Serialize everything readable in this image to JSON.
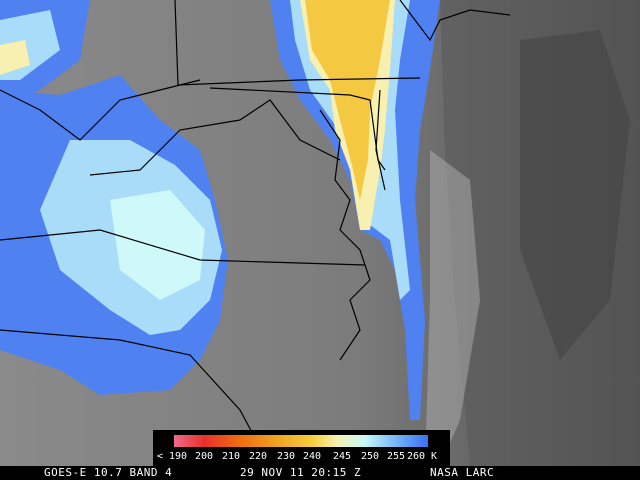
{
  "legend": {
    "labels": [
      "< 190",
      "200",
      "210",
      "220",
      "230",
      "240",
      "245",
      "250",
      "255",
      "260 K"
    ]
  },
  "caption": {
    "product": "GOES-E 10.7 BAND 4",
    "time": "29 NOV 11 20:15 Z",
    "source": "NASA LARC"
  }
}
